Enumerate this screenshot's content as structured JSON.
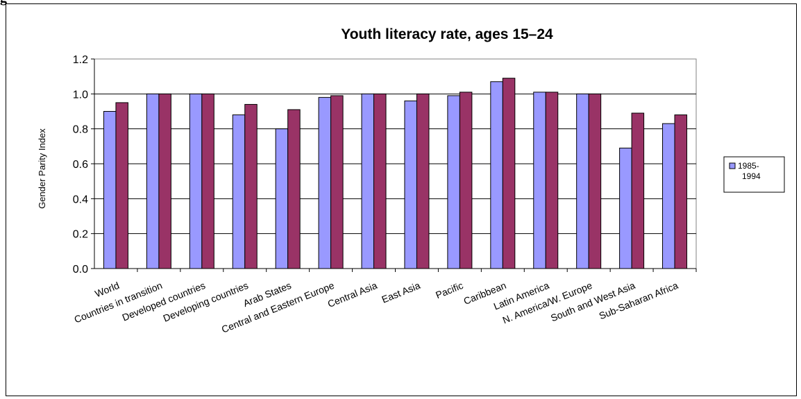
{
  "page_fragment": "g",
  "chart_data": {
    "type": "bar",
    "title": "Youth literacy rate, ages 15–24",
    "ylabel": "Gender Parity Index",
    "xlabel": "",
    "ylim": [
      0,
      1.2
    ],
    "yticks": [
      "0.0",
      "0.2",
      "0.4",
      "0.6",
      "0.8",
      "1.0",
      "1.2"
    ],
    "grid": true,
    "legend_position": "right",
    "categories": [
      "World",
      "Countries in transition",
      "Developed countries",
      "Developing countries",
      "Arab States",
      "Central and Eastern Europe",
      "Central Asia",
      "East Asia",
      "Pacific",
      "Caribbean",
      "Latin America",
      "N. America/W. Europe",
      "South and West Asia",
      "Sub-Saharan Africa"
    ],
    "series": [
      {
        "name": "1985-1994",
        "legend_lines": [
          "1985-",
          "1994"
        ],
        "color": "#9999ff",
        "values": [
          0.9,
          1.0,
          1.0,
          0.88,
          0.8,
          0.98,
          1.0,
          0.96,
          0.99,
          1.07,
          1.01,
          1.0,
          0.69,
          0.83
        ]
      },
      {
        "color": "#993366",
        "values": [
          0.95,
          1.0,
          1.0,
          0.94,
          0.91,
          0.99,
          1.0,
          1.0,
          1.01,
          1.09,
          1.01,
          1.0,
          0.89,
          0.88
        ]
      }
    ]
  }
}
